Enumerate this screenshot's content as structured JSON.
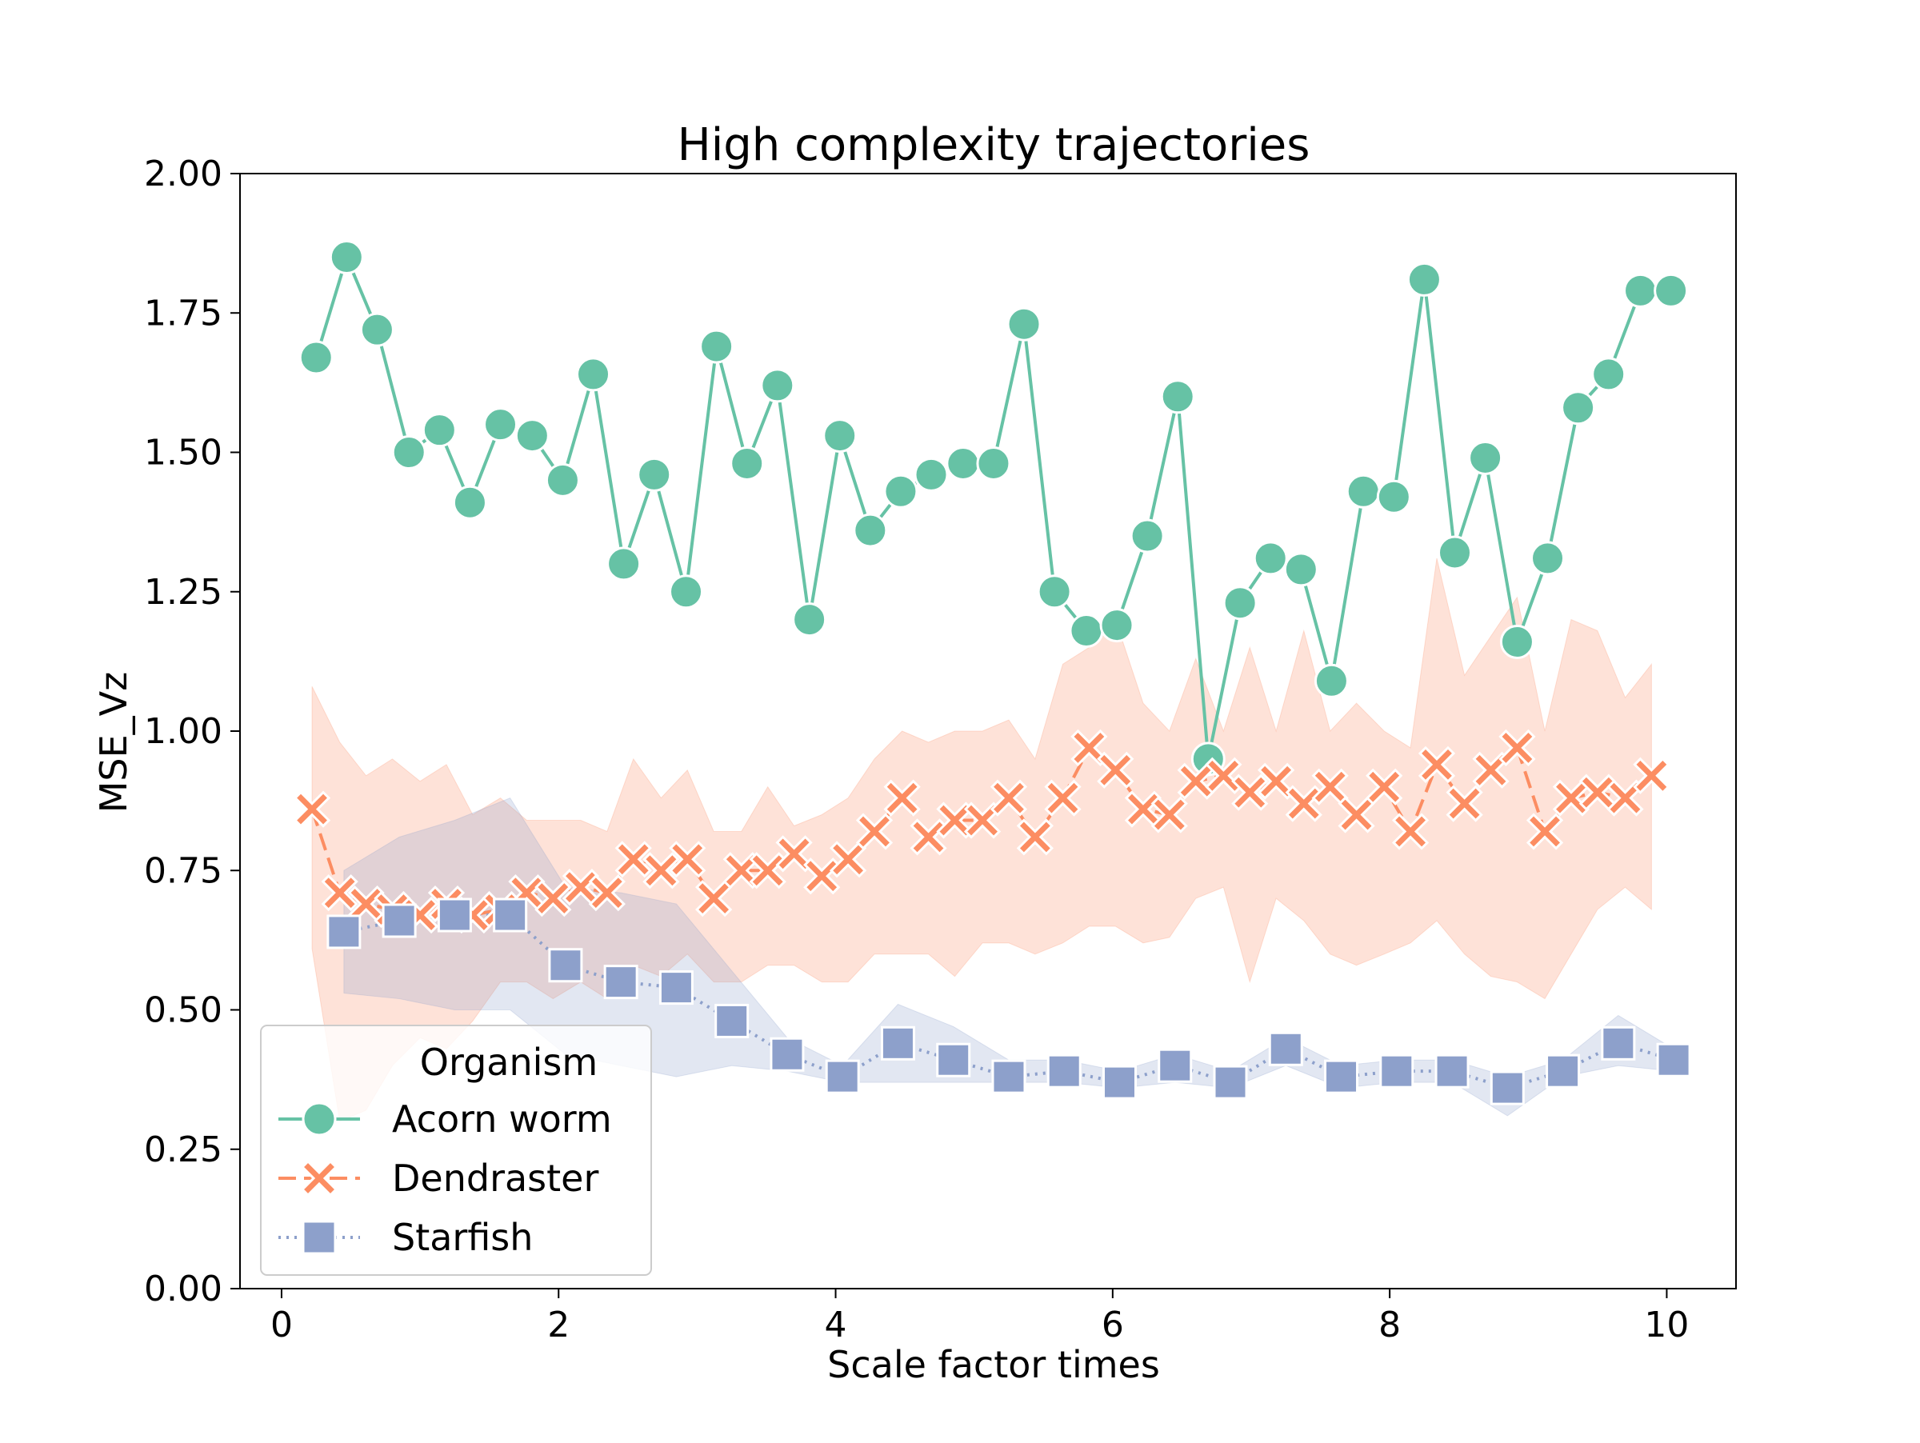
{
  "chart_data": {
    "type": "line",
    "title": "High complexity trajectories",
    "xlabel": "Scale factor times",
    "ylabel": "MSE_Vz",
    "xlim": [
      -0.3,
      10.5
    ],
    "ylim": [
      0,
      2
    ],
    "xticks": [
      0,
      2,
      4,
      6,
      8,
      10
    ],
    "xtick_labels": [
      "0",
      "2",
      "4",
      "6",
      "8",
      "10"
    ],
    "yticks": [
      0,
      0.25,
      0.5,
      0.75,
      1.0,
      1.25,
      1.5,
      1.75,
      2.0
    ],
    "ytick_labels": [
      "0.00",
      "0.25",
      "0.50",
      "0.75",
      "1.00",
      "1.25",
      "1.50",
      "1.75",
      "2.00"
    ],
    "grid": false,
    "legend": {
      "title": "Organism",
      "position": "lower-left"
    },
    "series": [
      {
        "name": "Acorn worm",
        "color": "#66c2a5",
        "marker": "circle",
        "linestyle": "solid",
        "x": [
          0.25,
          0.47,
          0.69,
          0.92,
          1.14,
          1.36,
          1.58,
          1.81,
          2.03,
          2.25,
          2.47,
          2.69,
          2.92,
          3.14,
          3.36,
          3.58,
          3.81,
          4.03,
          4.25,
          4.47,
          4.69,
          4.92,
          5.14,
          5.36,
          5.58,
          5.81,
          6.03,
          6.25,
          6.47,
          6.69,
          6.92,
          7.14,
          7.36,
          7.58,
          7.81,
          8.03,
          8.25,
          8.47,
          8.69,
          8.92,
          9.14,
          9.36,
          9.58,
          9.81,
          10.03
        ],
        "y": [
          1.67,
          1.85,
          1.72,
          1.5,
          1.54,
          1.41,
          1.55,
          1.53,
          1.45,
          1.64,
          1.3,
          1.46,
          1.25,
          1.69,
          1.48,
          1.62,
          1.2,
          1.53,
          1.36,
          1.43,
          1.46,
          1.48,
          1.48,
          1.73,
          1.25,
          1.18,
          1.19,
          1.35,
          1.6,
          0.95,
          1.23,
          1.31,
          1.29,
          1.09,
          1.43,
          1.42,
          1.81,
          1.32,
          1.49,
          1.16,
          1.31,
          1.58,
          1.64,
          1.79,
          1.79
        ]
      },
      {
        "name": "Dendraster",
        "color": "#fc8d62",
        "marker": "x",
        "linestyle": "dashed",
        "x": [
          0.22,
          0.42,
          0.61,
          0.8,
          1.0,
          1.19,
          1.38,
          1.58,
          1.77,
          1.96,
          2.16,
          2.35,
          2.54,
          2.74,
          2.93,
          3.12,
          3.32,
          3.51,
          3.7,
          3.9,
          4.09,
          4.28,
          4.48,
          4.67,
          4.86,
          5.06,
          5.25,
          5.44,
          5.64,
          5.83,
          6.02,
          6.22,
          6.41,
          6.6,
          6.8,
          6.99,
          7.18,
          7.38,
          7.57,
          7.76,
          7.96,
          8.15,
          8.34,
          8.54,
          8.73,
          8.92,
          9.12,
          9.31,
          9.5,
          9.7,
          9.89
        ],
        "y": [
          0.86,
          0.71,
          0.69,
          0.68,
          0.67,
          0.69,
          0.67,
          0.68,
          0.71,
          0.7,
          0.72,
          0.71,
          0.77,
          0.75,
          0.77,
          0.7,
          0.75,
          0.75,
          0.78,
          0.74,
          0.77,
          0.82,
          0.88,
          0.81,
          0.84,
          0.84,
          0.88,
          0.81,
          0.88,
          0.97,
          0.93,
          0.86,
          0.85,
          0.91,
          0.92,
          0.89,
          0.91,
          0.87,
          0.9,
          0.85,
          0.9,
          0.82,
          0.94,
          0.87,
          0.93,
          0.97,
          0.82,
          0.88,
          0.89,
          0.88,
          0.92
        ],
        "y_lower": [
          0.61,
          0.3,
          0.32,
          0.4,
          0.45,
          0.43,
          0.48,
          0.55,
          0.55,
          0.52,
          0.55,
          0.52,
          0.58,
          0.56,
          0.6,
          0.55,
          0.55,
          0.58,
          0.58,
          0.55,
          0.55,
          0.6,
          0.6,
          0.6,
          0.56,
          0.62,
          0.62,
          0.6,
          0.62,
          0.65,
          0.65,
          0.62,
          0.63,
          0.7,
          0.72,
          0.55,
          0.7,
          0.66,
          0.6,
          0.58,
          0.6,
          0.62,
          0.66,
          0.6,
          0.56,
          0.55,
          0.52,
          0.6,
          0.68,
          0.72,
          0.68
        ],
        "y_upper": [
          1.08,
          0.98,
          0.92,
          0.95,
          0.91,
          0.94,
          0.85,
          0.88,
          0.84,
          0.84,
          0.84,
          0.82,
          0.95,
          0.88,
          0.93,
          0.82,
          0.82,
          0.9,
          0.83,
          0.85,
          0.88,
          0.95,
          1.0,
          0.98,
          1.0,
          1.0,
          1.02,
          0.95,
          1.12,
          1.15,
          1.2,
          1.05,
          1.0,
          1.13,
          1.0,
          1.15,
          1.0,
          1.18,
          1.0,
          1.05,
          1.0,
          0.97,
          1.31,
          1.1,
          1.17,
          1.24,
          1.0,
          1.2,
          1.18,
          1.06,
          1.12
        ]
      },
      {
        "name": "Starfish",
        "color": "#8da0cb",
        "marker": "square",
        "linestyle": "dotted",
        "x": [
          0.45,
          0.85,
          1.25,
          1.65,
          2.05,
          2.45,
          2.85,
          3.25,
          3.65,
          4.05,
          4.45,
          4.85,
          5.25,
          5.65,
          6.05,
          6.45,
          6.85,
          7.25,
          7.65,
          8.05,
          8.45,
          8.85,
          9.25,
          9.65,
          10.05
        ],
        "y": [
          0.64,
          0.66,
          0.67,
          0.67,
          0.58,
          0.55,
          0.54,
          0.48,
          0.42,
          0.38,
          0.44,
          0.41,
          0.38,
          0.39,
          0.37,
          0.4,
          0.37,
          0.43,
          0.38,
          0.39,
          0.39,
          0.36,
          0.39,
          0.44,
          0.41
        ],
        "y_lower": [
          0.53,
          0.52,
          0.5,
          0.5,
          0.42,
          0.4,
          0.38,
          0.4,
          0.39,
          0.37,
          0.37,
          0.37,
          0.37,
          0.37,
          0.36,
          0.37,
          0.36,
          0.4,
          0.36,
          0.37,
          0.37,
          0.31,
          0.38,
          0.4,
          0.39
        ],
        "y_upper": [
          0.75,
          0.81,
          0.84,
          0.88,
          0.72,
          0.71,
          0.69,
          0.57,
          0.45,
          0.4,
          0.51,
          0.47,
          0.41,
          0.41,
          0.39,
          0.42,
          0.39,
          0.45,
          0.4,
          0.41,
          0.41,
          0.38,
          0.41,
          0.49,
          0.43
        ]
      }
    ]
  }
}
